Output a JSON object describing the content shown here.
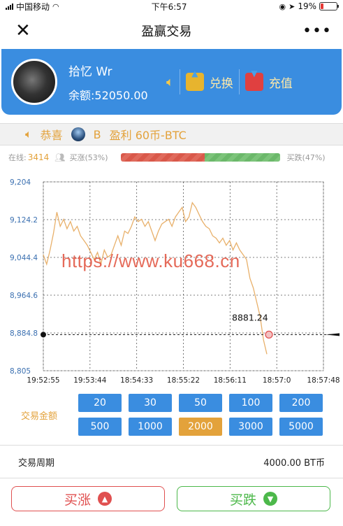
{
  "status": {
    "carrier": "中国移动",
    "time": "下午6:57",
    "battery": "19%"
  },
  "nav": {
    "title": "盈赢交易"
  },
  "user": {
    "name": "拾忆 Wr",
    "balance": "余额:52050.00",
    "exchange_label": "兑换",
    "recharge_label": "充值"
  },
  "notice": {
    "prefix": "恭喜",
    "user": "B",
    "text": "盈利 60币-BTC"
  },
  "market": {
    "online_label": "在线:",
    "online_count": "3414",
    "up_label": "买涨(53%)",
    "down_label": "买跌(47%)",
    "up_ratio": 0.53
  },
  "chart_data": {
    "type": "line",
    "y_ticks": [
      "9,204",
      "9,124.2",
      "9,044.4",
      "8,964.6",
      "8,884.8",
      "8,805"
    ],
    "ylim": [
      8805,
      9204
    ],
    "x_ticks": [
      "19:52:55",
      "19:53:44",
      "18:54:33",
      "18:55:22",
      "18:56:11",
      "18:57:0",
      "18:57:48"
    ],
    "current_value": 8881.24,
    "current_label": "8881.24",
    "line_color": "#e8b06a",
    "values": [
      9050,
      9030,
      9060,
      9095,
      9140,
      9110,
      9125,
      9105,
      9120,
      9100,
      9110,
      9090,
      9080,
      9070,
      9055,
      9040,
      9055,
      9030,
      9060,
      9045,
      9050,
      9070,
      9090,
      9070,
      9100,
      9095,
      9110,
      9130,
      9120,
      9125,
      9110,
      9120,
      9100,
      9080,
      9100,
      9115,
      9120,
      9125,
      9110,
      9130,
      9140,
      9150,
      9120,
      9130,
      9160,
      9150,
      9135,
      9120,
      9110,
      9105,
      9090,
      9085,
      9075,
      9085,
      9070,
      9080,
      9060,
      9075,
      9060,
      9050,
      9040,
      9000,
      8980,
      8950,
      8920,
      8870,
      8840
    ]
  },
  "watermark": "https://www.ku668.cn",
  "amounts": {
    "label": "交易金额",
    "values": [
      "20",
      "30",
      "50",
      "100",
      "200",
      "500",
      "1000",
      "2000",
      "3000",
      "5000"
    ],
    "selected": "2000"
  },
  "period": {
    "label": "交易周期",
    "value": "4000.00 BT币"
  },
  "actions": {
    "buy_up": "买涨",
    "buy_down": "买跌"
  }
}
